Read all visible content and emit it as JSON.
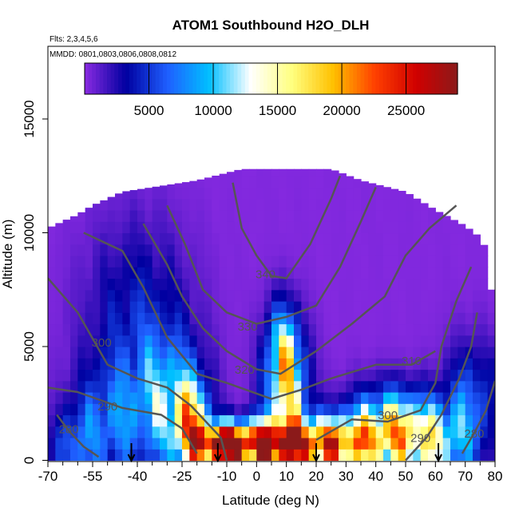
{
  "chart_data": {
    "type": "heatmap",
    "title": "ATOM1 Southbound H2O_DLH",
    "subtitle_flights": "Flts: 2,3,4,5,6",
    "subtitle_dates": "MMDD: 0801,0803,0806,0808,0812",
    "xlabel": "Latitude (deg N)",
    "ylabel": "Altitude (m)",
    "xlim": [
      -70,
      80
    ],
    "ylim": [
      0,
      17500
    ],
    "x_ticks": [
      {
        "value": -70,
        "label": "-70"
      },
      {
        "value": -55,
        "label": "-55"
      },
      {
        "value": -40,
        "label": "-40"
      },
      {
        "value": -25,
        "label": "-25"
      },
      {
        "value": -10,
        "label": "-10"
      },
      {
        "value": 0,
        "label": "0"
      },
      {
        "value": 10,
        "label": "10"
      },
      {
        "value": 20,
        "label": "20"
      },
      {
        "value": 30,
        "label": "30"
      },
      {
        "value": 40,
        "label": "40"
      },
      {
        "value": 50,
        "label": "50"
      },
      {
        "value": 60,
        "label": "60"
      },
      {
        "value": 70,
        "label": "70"
      },
      {
        "value": 80,
        "label": "80"
      }
    ],
    "x_minor_ticks": [
      -65,
      -60,
      -50,
      -45,
      -35,
      -30,
      -20,
      -15,
      -5,
      5,
      15,
      25,
      35,
      45,
      55,
      65,
      75
    ],
    "y_ticks": [
      {
        "value": 0,
        "label": "0"
      },
      {
        "value": 5000,
        "label": "5000"
      },
      {
        "value": 10000,
        "label": "10000"
      },
      {
        "value": 15000,
        "label": "15000"
      }
    ],
    "colorbar": {
      "min": 0,
      "max": 29000,
      "ticks": [
        {
          "value": 5000,
          "label": "5000"
        },
        {
          "value": 10000,
          "label": "10000"
        },
        {
          "value": 15000,
          "label": "15000"
        },
        {
          "value": 20000,
          "label": "20000"
        },
        {
          "value": 25000,
          "label": "25000"
        }
      ],
      "colors": [
        "#8a2be2",
        "#0000a0",
        "#1f5fff",
        "#00bfff",
        "#ffffff",
        "#ffff80",
        "#ffc000",
        "#ff4000",
        "#d00000",
        "#8b1a1a"
      ]
    },
    "top_profile": [
      [
        -70,
        10200
      ],
      [
        -60,
        10800
      ],
      [
        -55,
        11200
      ],
      [
        -45,
        11800
      ],
      [
        -35,
        12000
      ],
      [
        -20,
        12300
      ],
      [
        -5,
        12800
      ],
      [
        15,
        12800
      ],
      [
        25,
        12800
      ],
      [
        35,
        12300
      ],
      [
        50,
        11800
      ],
      [
        60,
        11000
      ],
      [
        70,
        10300
      ],
      [
        75,
        9800
      ],
      [
        78,
        9000
      ],
      [
        79,
        7000
      ],
      [
        80,
        5000
      ]
    ],
    "water_field": {
      "background_value": 200,
      "blobs": [
        {
          "lat": -62,
          "alt": 500,
          "value": 5000,
          "lat_sd": 5,
          "alt_sd": 1200
        },
        {
          "lat": -50,
          "alt": 1500,
          "value": 6000,
          "lat_sd": 8,
          "alt_sd": 1800
        },
        {
          "lat": -30,
          "alt": 2500,
          "value": 9000,
          "lat_sd": 8,
          "alt_sd": 2000
        },
        {
          "lat": -22,
          "alt": 1500,
          "value": 15000,
          "lat_sd": 4,
          "alt_sd": 1300
        },
        {
          "lat": -12,
          "alt": 700,
          "value": 23000,
          "lat_sd": 6,
          "alt_sd": 600
        },
        {
          "lat": 3,
          "alt": 700,
          "value": 25000,
          "lat_sd": 10,
          "alt_sd": 700
        },
        {
          "lat": 10,
          "alt": 2800,
          "value": 12000,
          "lat_sd": 5,
          "alt_sd": 1800
        },
        {
          "lat": 9,
          "alt": 4800,
          "value": 9000,
          "lat_sd": 4,
          "alt_sd": 1500
        },
        {
          "lat": 25,
          "alt": 700,
          "value": 19000,
          "lat_sd": 10,
          "alt_sd": 800
        },
        {
          "lat": 45,
          "alt": 1300,
          "value": 16000,
          "lat_sd": 10,
          "alt_sd": 1200
        },
        {
          "lat": 60,
          "alt": 700,
          "value": 9000,
          "lat_sd": 8,
          "alt_sd": 1200
        },
        {
          "lat": 72,
          "alt": 2500,
          "value": 6000,
          "lat_sd": 6,
          "alt_sd": 1800
        },
        {
          "lat": -40,
          "alt": 6000,
          "value": 4000,
          "lat_sd": 12,
          "alt_sd": 3000
        }
      ]
    },
    "contours": [
      {
        "label": "280",
        "label_pos": [
          -63,
          1200
        ],
        "points": [
          [
            -67,
            2000
          ],
          [
            -63,
            1300
          ],
          [
            -58,
            600
          ],
          [
            -53,
            150
          ]
        ]
      },
      {
        "label": "280",
        "label_pos": [
          73,
          1000
        ],
        "points": [
          [
            69,
            300
          ],
          [
            73,
            1200
          ],
          [
            77,
            2200
          ],
          [
            80,
            3500
          ]
        ]
      },
      {
        "label": "290",
        "label_pos": [
          -50,
          2200
        ],
        "points": [
          [
            -70,
            3200
          ],
          [
            -60,
            3000
          ],
          [
            -45,
            2300
          ],
          [
            -32,
            2000
          ],
          [
            -25,
            1400
          ],
          [
            -20,
            300
          ]
        ]
      },
      {
        "label": "290",
        "label_pos": [
          55,
          800
        ],
        "points": [
          [
            50,
            0
          ],
          [
            57,
            1000
          ],
          [
            62,
            2000
          ],
          [
            68,
            3600
          ],
          [
            72,
            5000
          ],
          [
            74,
            6500
          ]
        ]
      },
      {
        "label": "300",
        "label_pos": [
          -52,
          5000
        ],
        "points": [
          [
            -70,
            8000
          ],
          [
            -60,
            6500
          ],
          [
            -50,
            4200
          ],
          [
            -40,
            3600
          ],
          [
            -30,
            3200
          ],
          [
            -22,
            2400
          ],
          [
            -12,
            1000
          ],
          [
            -10,
            0
          ]
        ]
      },
      {
        "label": "300",
        "label_pos": [
          44,
          1800
        ],
        "points": [
          [
            20,
            900
          ],
          [
            32,
            1800
          ],
          [
            44,
            1700
          ],
          [
            55,
            2200
          ],
          [
            60,
            3400
          ],
          [
            62,
            5000
          ],
          [
            67,
            7000
          ],
          [
            72,
            8500
          ]
        ]
      },
      {
        "label": "310",
        "label_pos": [
          52,
          4200
        ],
        "points": [
          [
            -58,
            10000
          ],
          [
            -45,
            9200
          ],
          [
            -38,
            7600
          ],
          [
            -30,
            5400
          ],
          [
            -20,
            3800
          ],
          [
            -10,
            3400
          ],
          [
            5,
            2700
          ],
          [
            15,
            3100
          ],
          [
            25,
            3600
          ],
          [
            40,
            4200
          ],
          [
            52,
            4200
          ],
          [
            60,
            4800
          ]
        ]
      },
      {
        "label": "320",
        "label_pos": [
          -4,
          3800
        ],
        "points": [
          [
            -38,
            10400
          ],
          [
            -30,
            8600
          ],
          [
            -25,
            7200
          ],
          [
            -18,
            5800
          ],
          [
            -10,
            4800
          ],
          [
            0,
            4000
          ],
          [
            8,
            3800
          ],
          [
            20,
            4800
          ],
          [
            32,
            6000
          ],
          [
            43,
            7200
          ],
          [
            50,
            9000
          ],
          [
            58,
            10200
          ],
          [
            67,
            11200
          ]
        ]
      },
      {
        "label": "330",
        "label_pos": [
          -3,
          5700
        ],
        "points": [
          [
            -30,
            11200
          ],
          [
            -24,
            9500
          ],
          [
            -18,
            7500
          ],
          [
            -10,
            6500
          ],
          [
            0,
            6000
          ],
          [
            10,
            6300
          ],
          [
            20,
            6800
          ],
          [
            28,
            8500
          ],
          [
            35,
            10500
          ],
          [
            40,
            12000
          ]
        ]
      },
      {
        "label": "340",
        "label_pos": [
          3,
          8000
        ],
        "points": [
          [
            -8,
            12200
          ],
          [
            -5,
            10200
          ],
          [
            0,
            9000
          ],
          [
            5,
            8100
          ],
          [
            10,
            8000
          ],
          [
            18,
            9500
          ],
          [
            25,
            11500
          ],
          [
            28,
            12500
          ]
        ]
      }
    ],
    "flight_arrows": [
      -42,
      -13,
      20,
      61
    ]
  }
}
